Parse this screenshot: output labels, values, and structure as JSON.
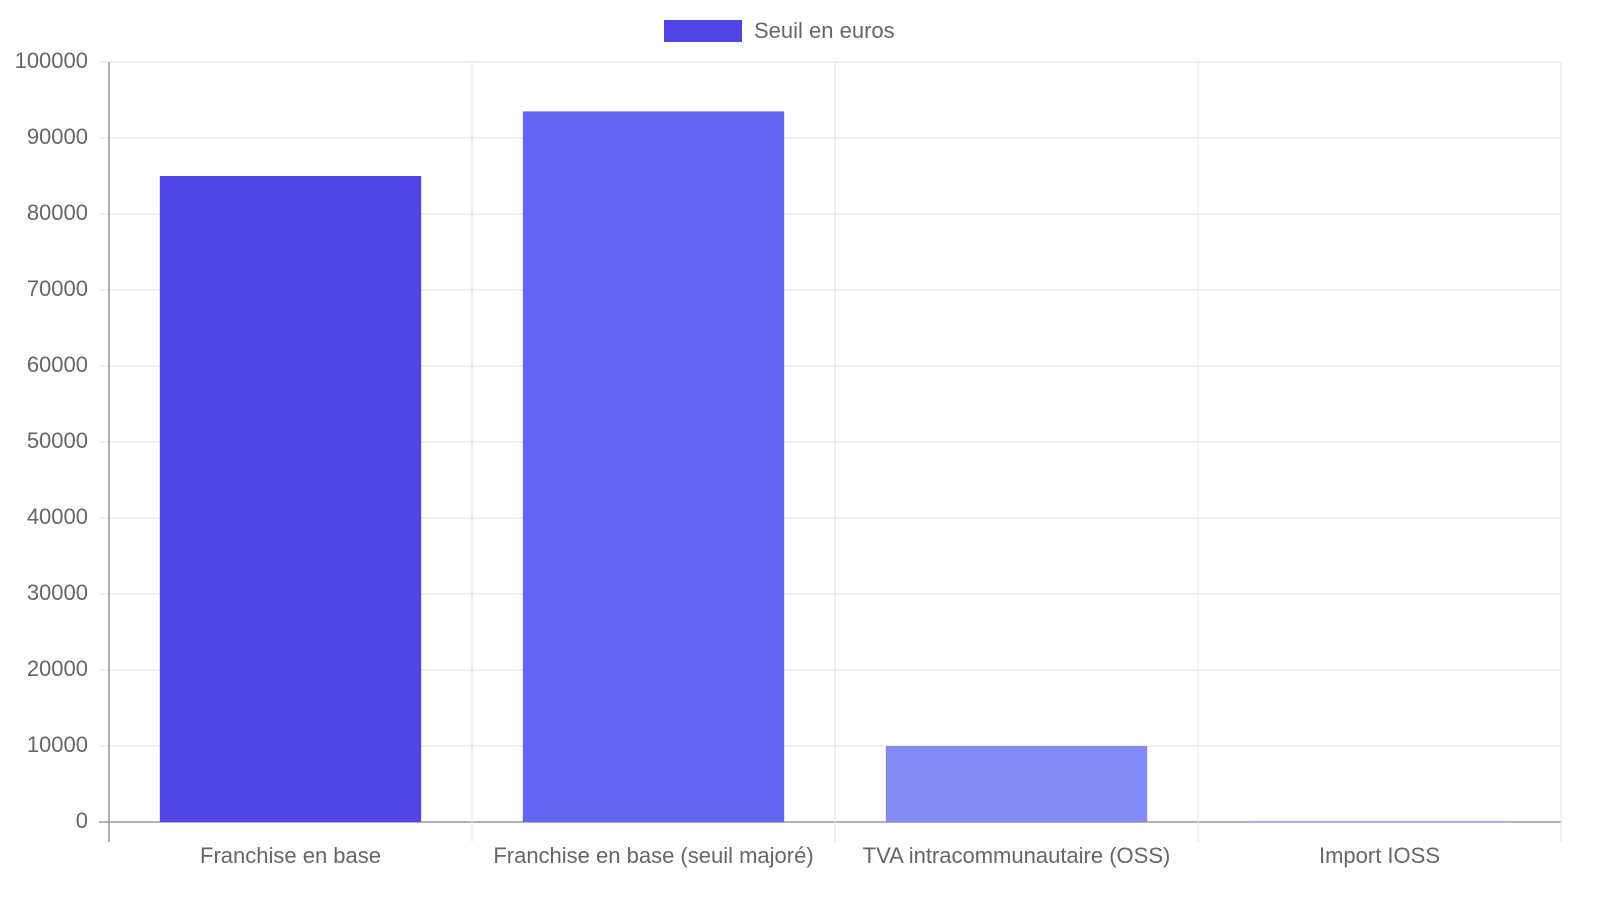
{
  "chart_data": {
    "type": "bar",
    "categories": [
      "Franchise en base",
      "Franchise en base (seuil majoré)",
      "TVA intracommunautaire (OSS)",
      "Import IOSS"
    ],
    "series": [
      {
        "name": "Seuil en euros",
        "colors": [
          "#4f46e5",
          "#6366f1",
          "#818cf8",
          "#a5b4fc"
        ],
        "values": [
          85000,
          93500,
          10000,
          150
        ]
      }
    ],
    "ylim": [
      0,
      100000
    ],
    "yticks": [
      0,
      10000,
      20000,
      30000,
      40000,
      50000,
      60000,
      70000,
      80000,
      90000,
      100000
    ],
    "grid": true,
    "legend": "top"
  }
}
